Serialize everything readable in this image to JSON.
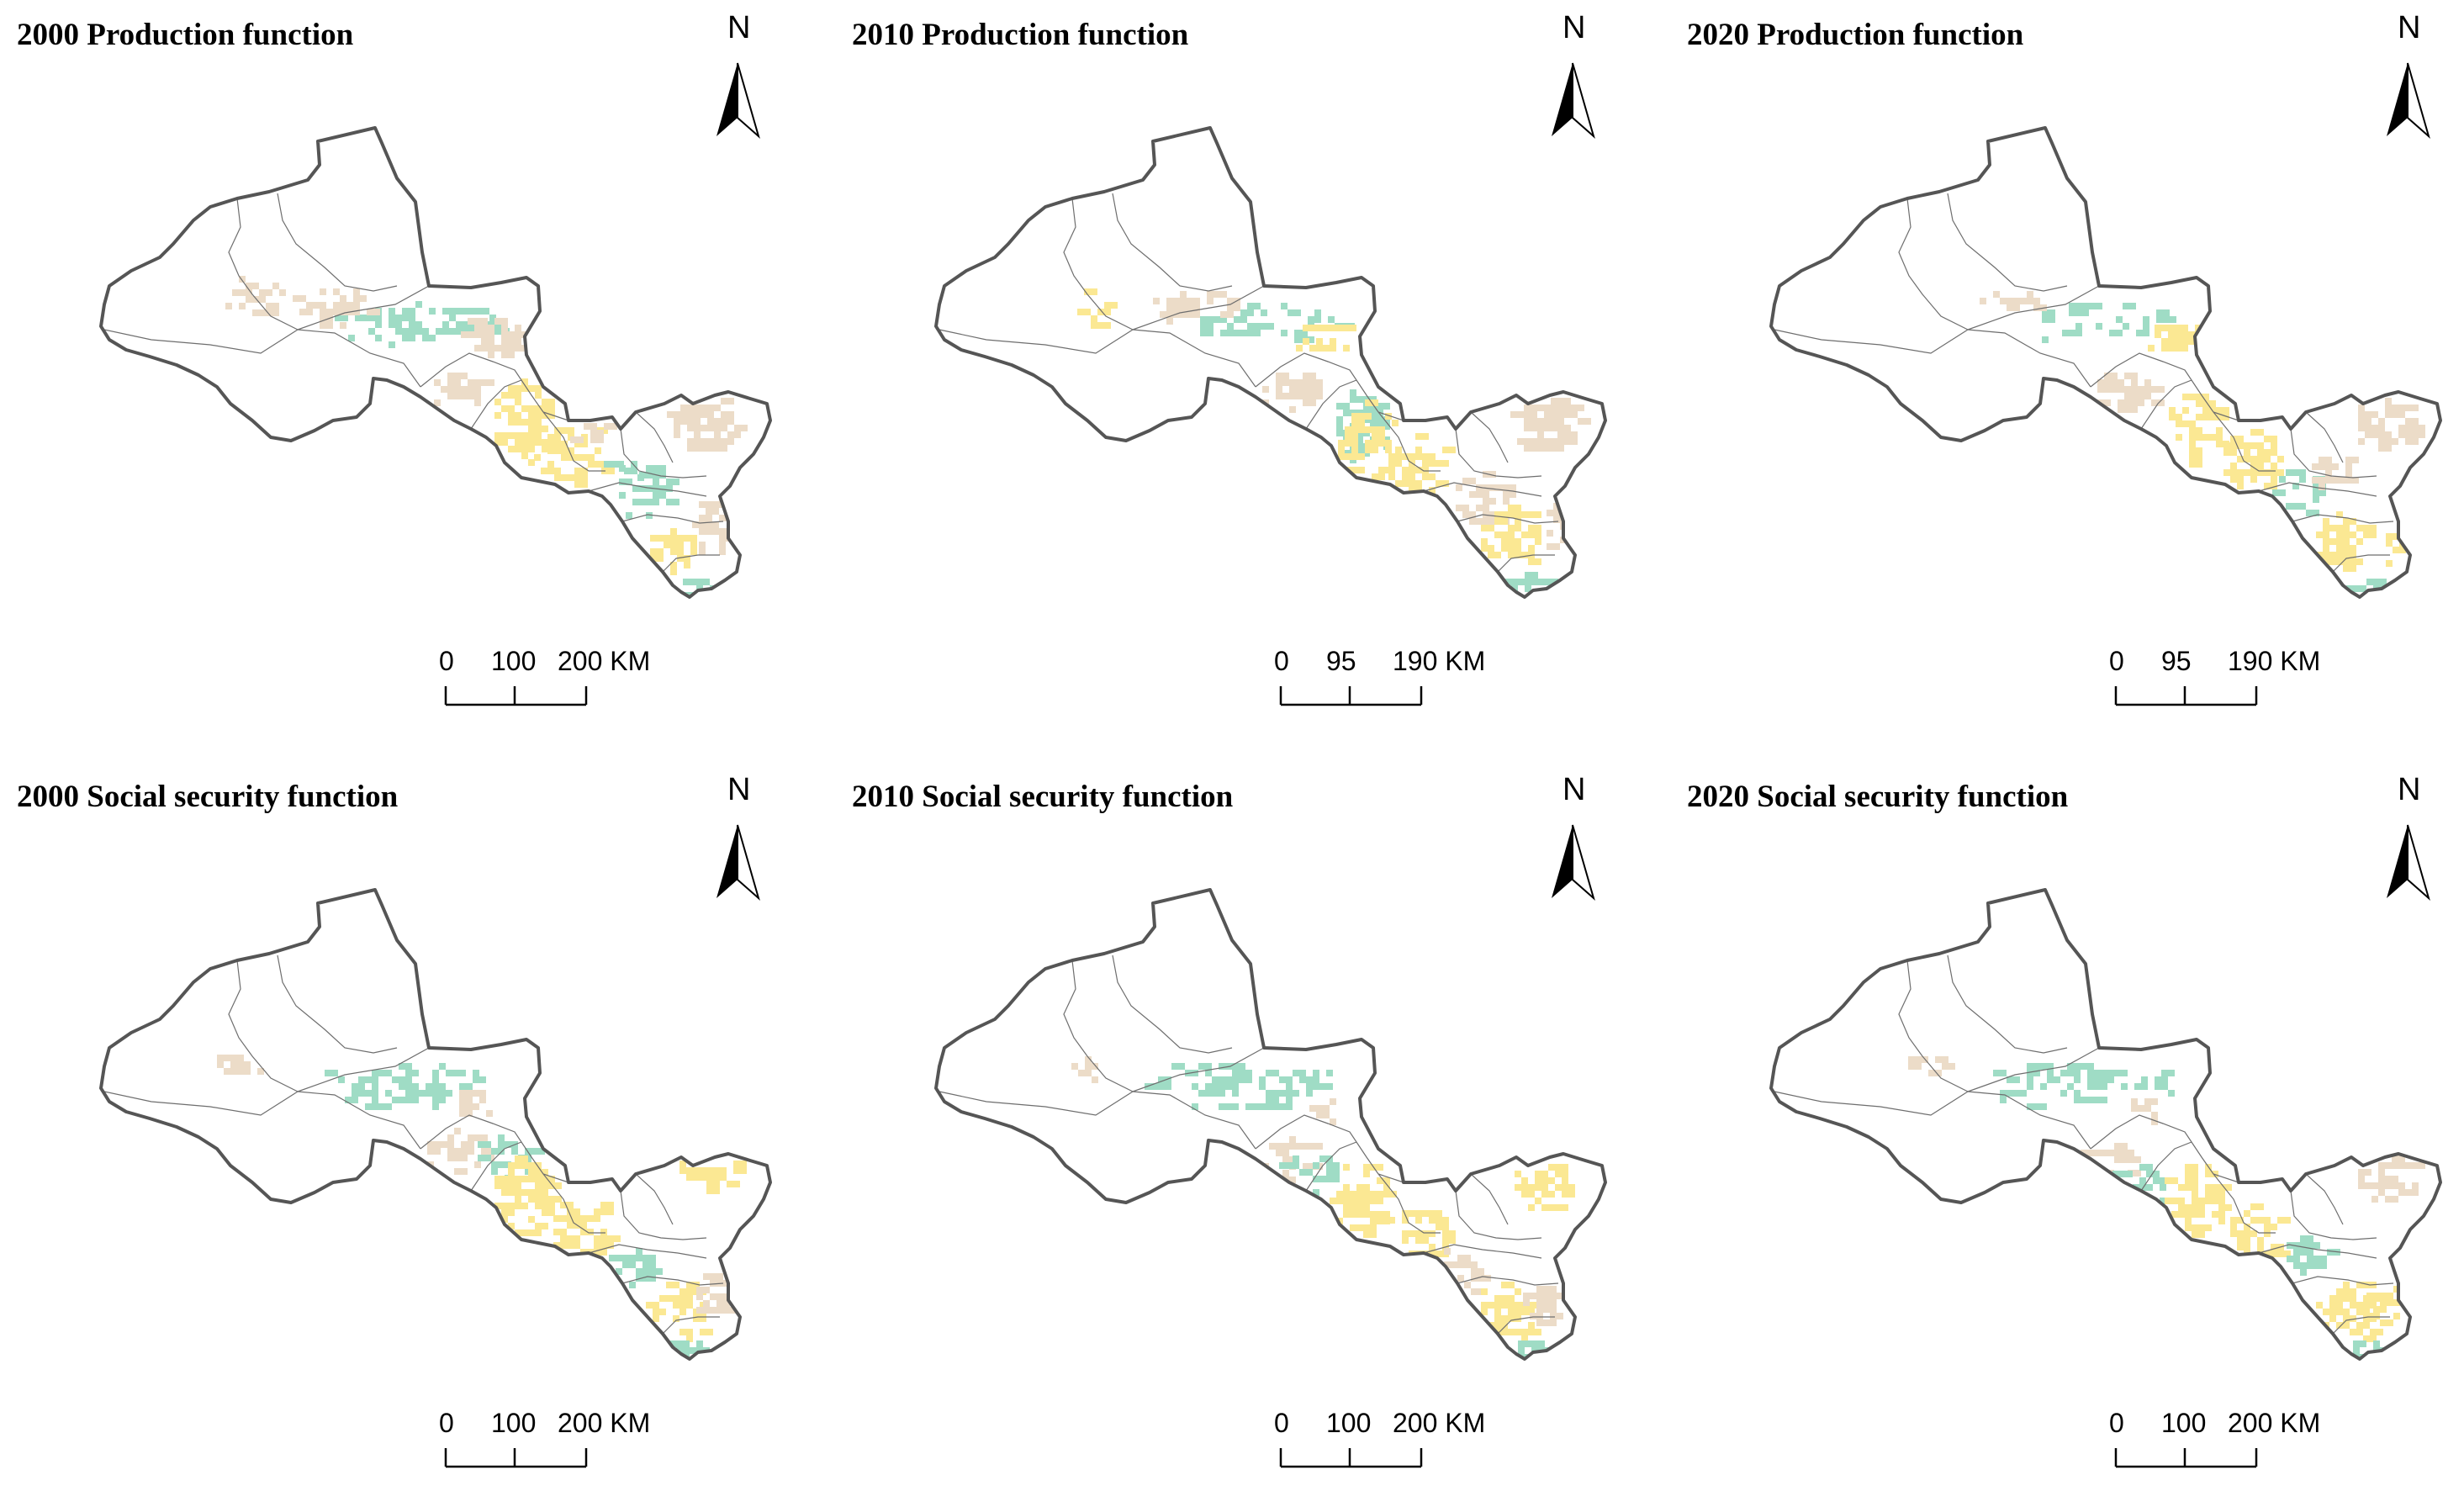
{
  "colors": {
    "low": "#d8eee2",
    "green": "#9fdcc5",
    "beige": "#ecdcc8",
    "yellow": "#fbe893",
    "outline": "#555555",
    "inner": "#6e6e6e"
  },
  "north_label": "N",
  "panels": [
    {
      "title": "2000 Production function",
      "scale": [
        "0",
        "100",
        "200 KM"
      ]
    },
    {
      "title": "2010 Production function",
      "scale": [
        "0",
        "95",
        "190 KM"
      ]
    },
    {
      "title": "2020 Production function",
      "scale": [
        "0",
        "95",
        "190 KM"
      ]
    },
    {
      "title": "2000 Social security function",
      "scale": [
        "0",
        "100",
        "200 KM"
      ]
    },
    {
      "title": "2010 Social security function",
      "scale": [
        "0",
        "100",
        "200 KM"
      ]
    },
    {
      "title": "2020 Social security function",
      "scale": [
        "0",
        "100",
        "200 KM"
      ]
    }
  ]
}
